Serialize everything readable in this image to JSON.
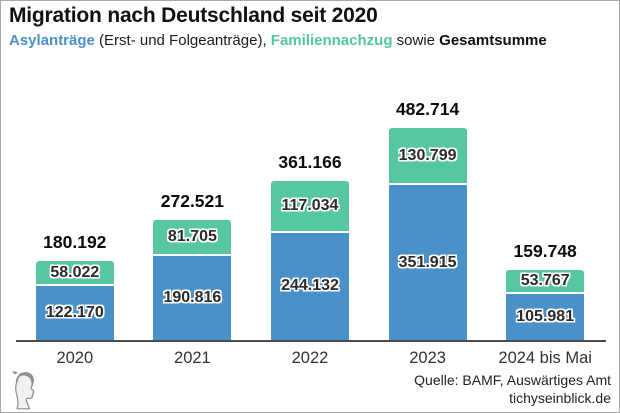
{
  "header": {
    "title": "Migration nach Deutschland seit 2020",
    "subtitle": {
      "part1": "Asylanträge",
      "part2": " (Erst- und Folgeanträge), ",
      "part3": "Familiennachzug",
      "part4": " sowie ",
      "part5": "Gesamtsumme"
    }
  },
  "chart_data": {
    "type": "bar",
    "stacked": true,
    "title": "Migration nach Deutschland seit 2020",
    "categories": [
      "2020",
      "2021",
      "2022",
      "2023",
      "2024 bis Mai"
    ],
    "series": [
      {
        "name": "Asylanträge (Erst- und Folgeanträge)",
        "color": "#4a90c9",
        "values": [
          122170,
          190816,
          244132,
          351915,
          105981
        ]
      },
      {
        "name": "Familiennachzug",
        "color": "#57c6a2",
        "values": [
          58022,
          81705,
          117034,
          130799,
          53767
        ]
      }
    ],
    "totals": [
      180192,
      272521,
      361166,
      482714,
      159748
    ],
    "ylim": [
      0,
      482714
    ],
    "grid": false,
    "legend_position": "in-subtitle",
    "number_format": "de (thousands separator: dot)"
  },
  "footer": {
    "source": "Quelle: BAMF, Auswärtiges Amt",
    "site": "tichyseinblick.de",
    "logo": "tichys-einblick-classical-head-logo"
  },
  "colors": {
    "asyl_blue": "#4a90c9",
    "familien_green": "#57c6a2",
    "axis": "#4b4b4b",
    "text": "#111111",
    "logo_grey": "#8e8e8e"
  }
}
